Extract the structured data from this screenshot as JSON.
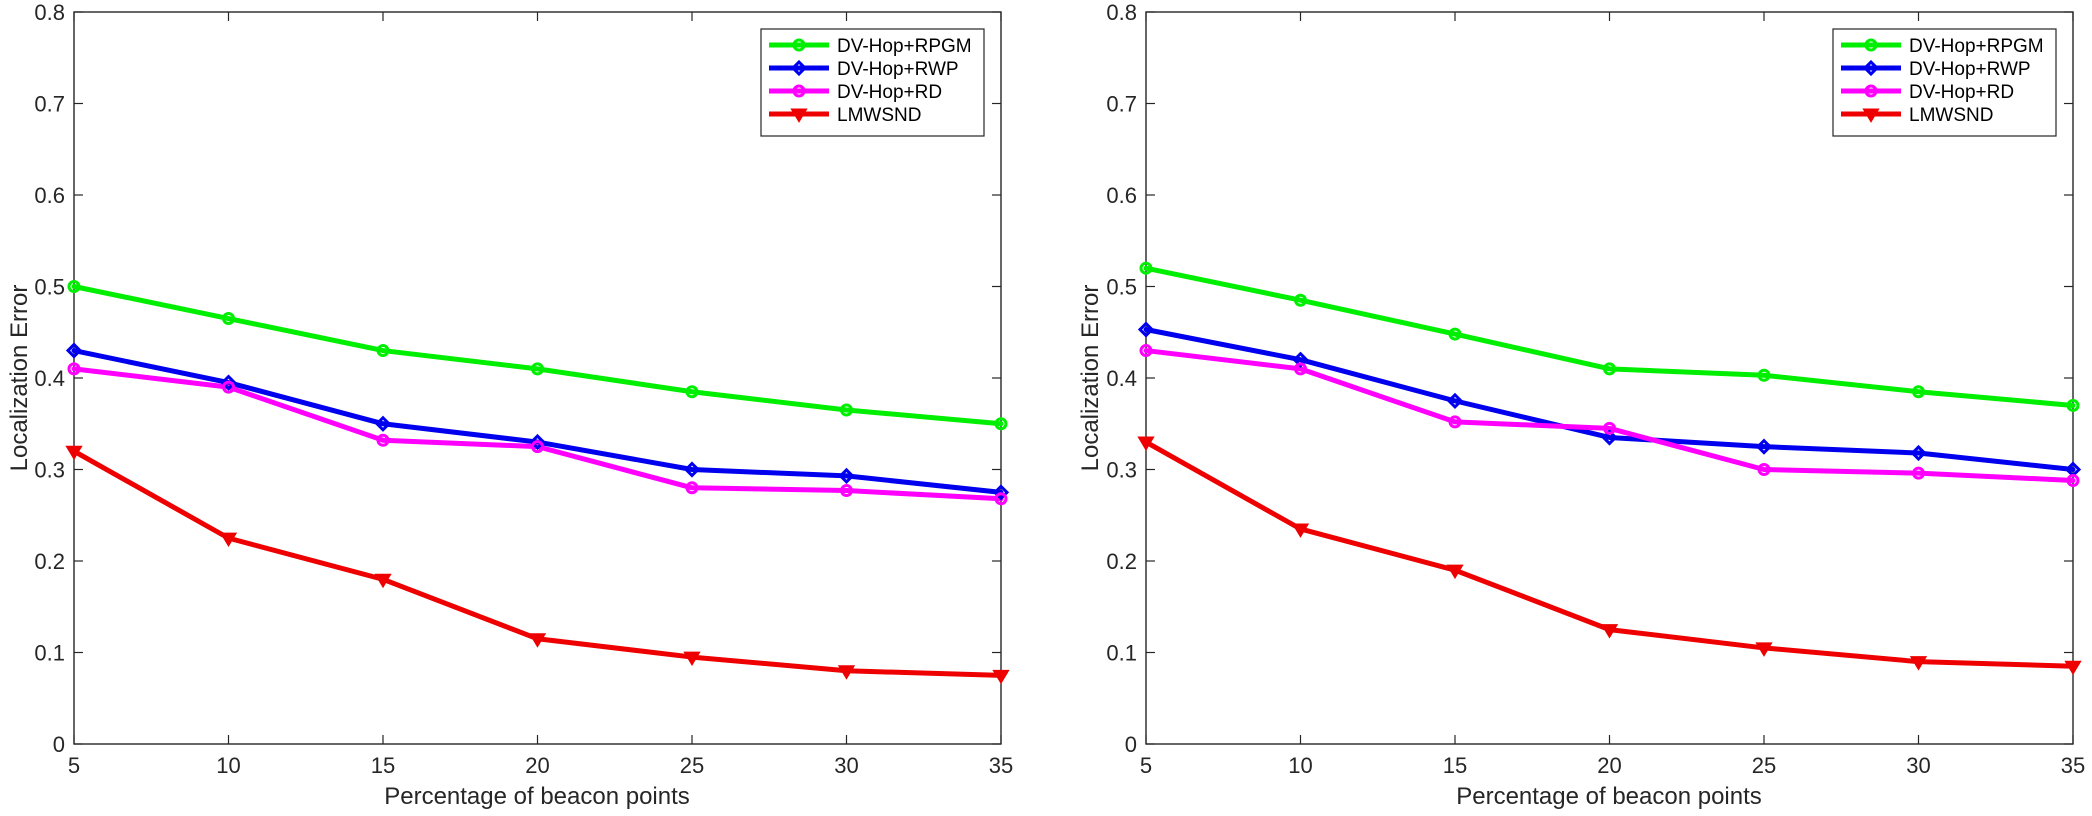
{
  "chart_data": [
    {
      "type": "line",
      "title": "",
      "xlabel": "Percentage of beacon points",
      "ylabel": "Localization Error",
      "xlim": [
        5,
        35
      ],
      "ylim": [
        0,
        0.8
      ],
      "xticks": [
        5,
        10,
        15,
        20,
        25,
        30,
        35
      ],
      "yticks": [
        0,
        0.1,
        0.2,
        0.3,
        0.4,
        0.5,
        0.6,
        0.7,
        0.8
      ],
      "xtick_labels": [
        "5",
        "10",
        "15",
        "20",
        "25",
        "30",
        "35"
      ],
      "ytick_labels": [
        "0",
        "0.1",
        "0.2",
        "0.3",
        "0.4",
        "0.5",
        "0.6",
        "0.7",
        "0.8"
      ],
      "grid": false,
      "legend_position": "top-right",
      "x": [
        5,
        10,
        15,
        20,
        25,
        30,
        35
      ],
      "series": [
        {
          "name": "DV-Hop+RPGM",
          "color": "#00ee00",
          "marker": "circle",
          "values": [
            0.5,
            0.465,
            0.43,
            0.41,
            0.385,
            0.365,
            0.35
          ]
        },
        {
          "name": "DV-Hop+RWP",
          "color": "#0000ee",
          "marker": "diamond",
          "values": [
            0.43,
            0.395,
            0.35,
            0.33,
            0.3,
            0.293,
            0.275
          ]
        },
        {
          "name": "DV-Hop+RD",
          "color": "#ff00ff",
          "marker": "circle",
          "values": [
            0.41,
            0.39,
            0.332,
            0.325,
            0.28,
            0.277,
            0.268
          ]
        },
        {
          "name": "LMWSND",
          "color": "#ee0000",
          "marker": "triangle-down",
          "values": [
            0.32,
            0.225,
            0.18,
            0.115,
            0.095,
            0.08,
            0.075
          ]
        }
      ]
    },
    {
      "type": "line",
      "title": "",
      "xlabel": "Percentage of beacon points",
      "ylabel": "Localization Error",
      "xlim": [
        5,
        35
      ],
      "ylim": [
        0,
        0.8
      ],
      "xticks": [
        5,
        10,
        15,
        20,
        25,
        30,
        35
      ],
      "yticks": [
        0,
        0.1,
        0.2,
        0.3,
        0.4,
        0.5,
        0.6,
        0.7,
        0.8
      ],
      "xtick_labels": [
        "5",
        "10",
        "15",
        "20",
        "25",
        "30",
        "35"
      ],
      "ytick_labels": [
        "0",
        "0.1",
        "0.2",
        "0.3",
        "0.4",
        "0.5",
        "0.6",
        "0.7",
        "0.8"
      ],
      "grid": false,
      "legend_position": "top-right",
      "x": [
        5,
        10,
        15,
        20,
        25,
        30,
        35
      ],
      "series": [
        {
          "name": "DV-Hop+RPGM",
          "color": "#00ee00",
          "marker": "circle",
          "values": [
            0.52,
            0.485,
            0.448,
            0.41,
            0.403,
            0.385,
            0.37
          ]
        },
        {
          "name": "DV-Hop+RWP",
          "color": "#0000ee",
          "marker": "diamond",
          "values": [
            0.453,
            0.42,
            0.375,
            0.335,
            0.325,
            0.318,
            0.3
          ]
        },
        {
          "name": "DV-Hop+RD",
          "color": "#ff00ff",
          "marker": "circle",
          "values": [
            0.43,
            0.41,
            0.352,
            0.345,
            0.3,
            0.296,
            0.288
          ]
        },
        {
          "name": "LMWSND",
          "color": "#ee0000",
          "marker": "triangle-down",
          "values": [
            0.33,
            0.235,
            0.19,
            0.125,
            0.105,
            0.09,
            0.085
          ]
        }
      ]
    }
  ]
}
